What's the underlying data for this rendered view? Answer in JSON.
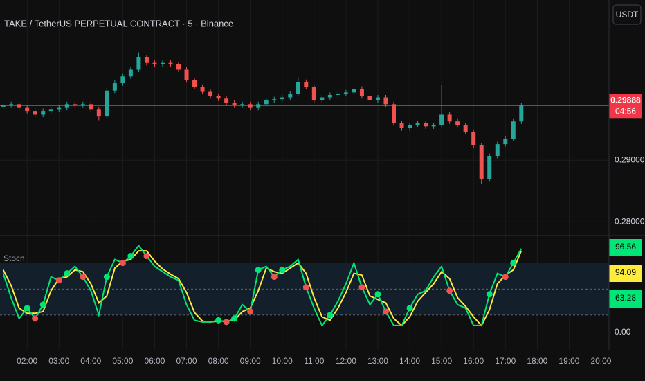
{
  "chart_data": [
    {
      "type": "candlestick",
      "title": "TAKE / TetherUS PERPETUAL CONTRACT · 5 · Binance",
      "currency": "USDT",
      "up_color": "#26a69a",
      "down_color": "#ef5350",
      "x": [
        "01:15",
        "01:30",
        "01:45",
        "02:00",
        "02:15",
        "02:30",
        "02:45",
        "03:00",
        "03:15",
        "03:30",
        "03:45",
        "04:00",
        "04:15",
        "04:30",
        "04:45",
        "05:00",
        "05:15",
        "05:30",
        "05:45",
        "06:00",
        "06:15",
        "06:30",
        "06:45",
        "07:00",
        "07:15",
        "07:30",
        "07:45",
        "08:00",
        "08:15",
        "08:30",
        "08:45",
        "09:00",
        "09:15",
        "09:30",
        "09:45",
        "10:00",
        "10:15",
        "10:30",
        "10:45",
        "11:00",
        "11:15",
        "11:30",
        "11:45",
        "12:00",
        "12:15",
        "12:30",
        "12:45",
        "13:00",
        "13:15",
        "13:30",
        "13:45",
        "14:00",
        "14:15",
        "14:30",
        "14:45",
        "15:00",
        "15:15",
        "15:30",
        "15:45",
        "16:00",
        "16:15",
        "16:30",
        "16:45",
        "17:00",
        "17:15",
        "17:30"
      ],
      "open": [
        0.2987,
        0.2989,
        0.2991,
        0.2985,
        0.298,
        0.2974,
        0.298,
        0.2982,
        0.2985,
        0.2991,
        0.2989,
        0.2991,
        0.2982,
        0.2971,
        0.3013,
        0.3025,
        0.3036,
        0.3047,
        0.3067,
        0.3058,
        0.3056,
        0.3058,
        0.3056,
        0.3047,
        0.303,
        0.3019,
        0.3011,
        0.3004,
        0.3,
        0.2993,
        0.2989,
        0.2991,
        0.2985,
        0.2991,
        0.2997,
        0.2999,
        0.3002,
        0.3008,
        0.3027,
        0.3019,
        0.2997,
        0.3002,
        0.3006,
        0.3008,
        0.301,
        0.3016,
        0.3004,
        0.2997,
        0.3002,
        0.2991,
        0.296,
        0.2952,
        0.2957,
        0.296,
        0.2955,
        0.2957,
        0.2974,
        0.2963,
        0.2957,
        0.2946,
        0.2924,
        0.287,
        0.2907,
        0.2926,
        0.2935,
        0.2963
      ],
      "high": [
        0.2993,
        0.2995,
        0.2995,
        0.2989,
        0.2984,
        0.2984,
        0.2986,
        0.2989,
        0.2995,
        0.2995,
        0.2995,
        0.2995,
        0.2986,
        0.3018,
        0.303,
        0.304,
        0.3052,
        0.3075,
        0.307,
        0.3062,
        0.3062,
        0.3062,
        0.306,
        0.3051,
        0.3034,
        0.3023,
        0.3015,
        0.3008,
        0.3004,
        0.2997,
        0.2995,
        0.2995,
        0.2995,
        0.3001,
        0.3003,
        0.3006,
        0.3012,
        0.3035,
        0.3031,
        0.3023,
        0.3006,
        0.301,
        0.3012,
        0.3014,
        0.302,
        0.302,
        0.3008,
        0.3006,
        0.3006,
        0.2995,
        0.2964,
        0.2961,
        0.2964,
        0.2964,
        0.2961,
        0.3022,
        0.2978,
        0.2967,
        0.2961,
        0.295,
        0.2928,
        0.2911,
        0.293,
        0.2939,
        0.2967,
        0.2993
      ],
      "low": [
        0.2983,
        0.2985,
        0.2981,
        0.2976,
        0.297,
        0.297,
        0.2976,
        0.2978,
        0.2981,
        0.2985,
        0.2985,
        0.2978,
        0.2965,
        0.2967,
        0.3009,
        0.3021,
        0.3032,
        0.3043,
        0.3054,
        0.3052,
        0.3052,
        0.3052,
        0.3043,
        0.3026,
        0.3015,
        0.3007,
        0.3,
        0.2996,
        0.2989,
        0.2985,
        0.2985,
        0.2981,
        0.2981,
        0.2987,
        0.2993,
        0.2995,
        0.2998,
        0.3004,
        0.3015,
        0.2993,
        0.2993,
        0.2998,
        0.3002,
        0.3004,
        0.3006,
        0.3,
        0.2993,
        0.2993,
        0.2987,
        0.2956,
        0.2948,
        0.2948,
        0.2953,
        0.2951,
        0.2951,
        0.2953,
        0.2959,
        0.2953,
        0.2942,
        0.292,
        0.2862,
        0.2865,
        0.2903,
        0.2922,
        0.2931,
        0.2959
      ],
      "close": [
        0.2989,
        0.2991,
        0.2985,
        0.298,
        0.2974,
        0.298,
        0.2982,
        0.2985,
        0.2991,
        0.2989,
        0.2991,
        0.2982,
        0.2971,
        0.3013,
        0.3025,
        0.3036,
        0.3047,
        0.3067,
        0.3058,
        0.3056,
        0.3058,
        0.3056,
        0.3047,
        0.303,
        0.3019,
        0.3011,
        0.3004,
        0.3,
        0.2993,
        0.2989,
        0.2991,
        0.2985,
        0.2991,
        0.2997,
        0.2999,
        0.3002,
        0.3008,
        0.3027,
        0.3019,
        0.2997,
        0.3002,
        0.3006,
        0.3008,
        0.301,
        0.3016,
        0.3004,
        0.2997,
        0.3002,
        0.2991,
        0.296,
        0.2952,
        0.2957,
        0.296,
        0.2955,
        0.2957,
        0.2974,
        0.2963,
        0.2957,
        0.2946,
        0.2924,
        0.287,
        0.2907,
        0.2926,
        0.2935,
        0.2963,
        0.29888
      ],
      "last_price": 0.29888,
      "countdown": "04:56",
      "xlim": [
        "01:09",
        "20:15"
      ],
      "xticks": [
        "02:00",
        "03:00",
        "04:00",
        "05:00",
        "06:00",
        "07:00",
        "08:00",
        "09:00",
        "10:00",
        "11:00",
        "12:00",
        "13:00",
        "14:00",
        "15:00",
        "16:00",
        "17:00",
        "18:00",
        "19:00",
        "20:00"
      ],
      "ylim": [
        0.278,
        0.316
      ],
      "yticks": [
        {
          "value": 0.28,
          "label": "0.28000"
        },
        {
          "value": 0.29,
          "label": "0.29000"
        }
      ],
      "grid": true
    },
    {
      "type": "line",
      "title": "Stoch",
      "series": [
        {
          "color": "#00e676",
          "values": [
            68,
            40,
            16,
            28,
            16,
            32,
            64,
            60,
            68,
            76,
            64,
            48,
            20,
            64,
            84,
            80,
            88,
            100,
            88,
            76,
            70,
            64,
            60,
            32,
            14,
            12,
            12,
            14,
            12,
            16,
            32,
            24,
            72,
            76,
            64,
            72,
            76,
            84,
            52,
            28,
            8,
            20,
            36,
            56,
            80,
            52,
            32,
            44,
            24,
            8,
            8,
            28,
            44,
            48,
            64,
            76,
            48,
            32,
            28,
            8,
            8,
            44,
            68,
            64,
            80,
            96.56
          ]
        },
        {
          "color": "#ffeb3b",
          "values": [
            72,
            54,
            28,
            22,
            22,
            24,
            48,
            62,
            64,
            72,
            70,
            56,
            34,
            42,
            74,
            82,
            84,
            94,
            94,
            82,
            73,
            67,
            62,
            46,
            23,
            13,
            12,
            13,
            13,
            14,
            24,
            28,
            48,
            74,
            70,
            68,
            74,
            80,
            68,
            40,
            18,
            14,
            28,
            46,
            68,
            66,
            42,
            38,
            34,
            16,
            8,
            18,
            36,
            46,
            56,
            70,
            62,
            40,
            30,
            18,
            8,
            26,
            56,
            66,
            72,
            94.09
          ]
        }
      ],
      "cross_up_color": "#00e676",
      "cross_down_color": "#ef5350",
      "levels": [
        20,
        50,
        80
      ],
      "band": [
        20,
        80
      ],
      "last_values": [
        96.56,
        94.09,
        63.28
      ],
      "last_value_colors": [
        "#00e676",
        "#ffeb3b",
        "#00e676"
      ],
      "ylim": [
        -20,
        110
      ],
      "yticks": [
        {
          "value": 0,
          "label": "0.00"
        }
      ]
    }
  ]
}
